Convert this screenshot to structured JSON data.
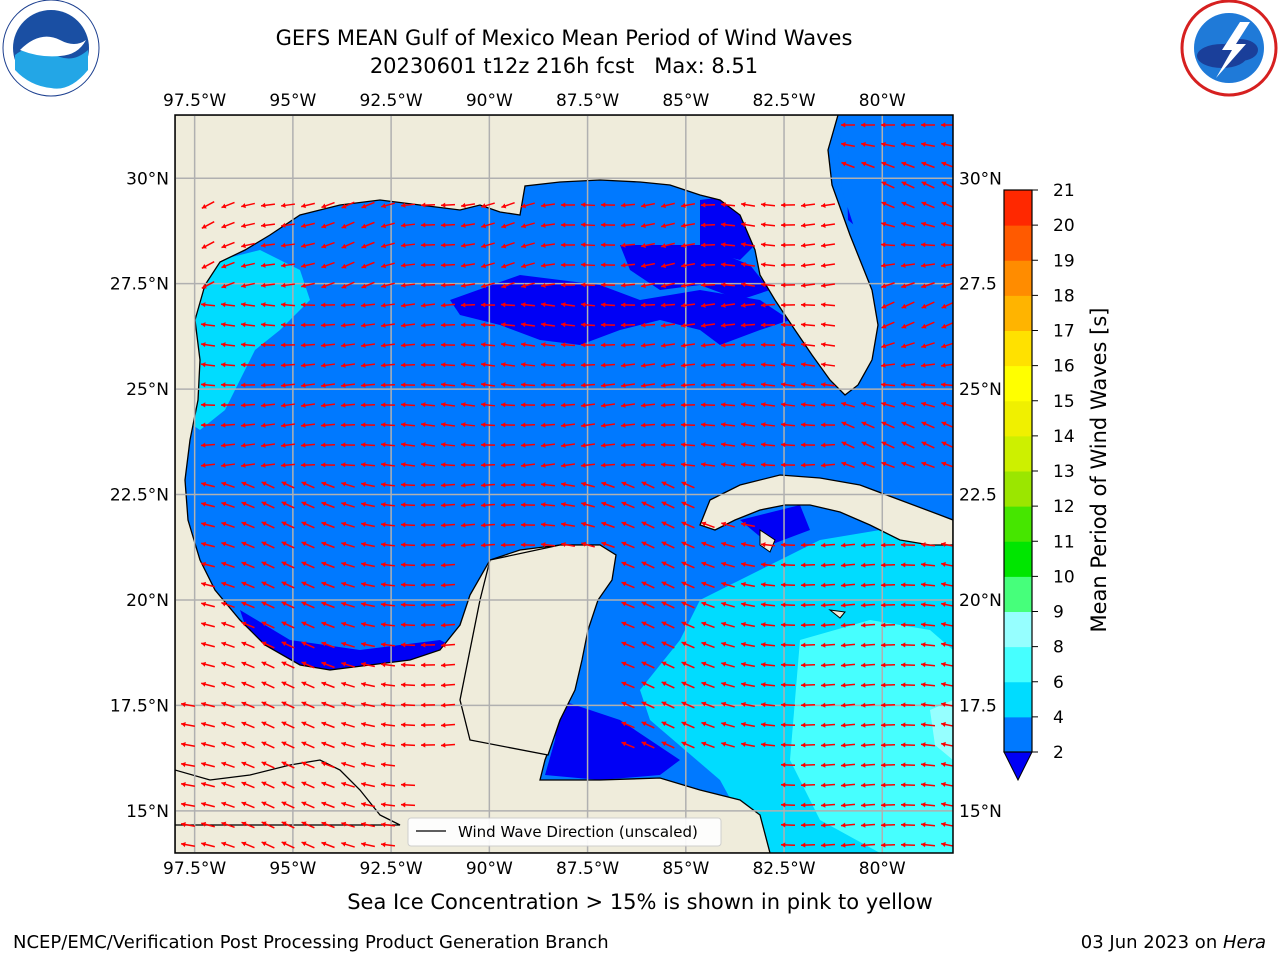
{
  "title_line1": "GEFS MEAN Gulf of Mexico Mean Period of Wind Waves",
  "title_line2": "20230601 t12z 216h fcst   Max: 8.51",
  "footer_note": "Sea Ice Concentration > 15% is shown in pink to yellow",
  "credit": "NCEP/EMC/Verification Post Processing Product Generation Branch",
  "date_text": "03 Jun 2023 on ",
  "machine": "Hera",
  "logos": {
    "left": "noaa-logo",
    "right": "nws-logo"
  },
  "map": {
    "lon_ticks": [
      "97.5°W",
      "95°W",
      "92.5°W",
      "90°W",
      "87.5°W",
      "85°W",
      "82.5°W",
      "80°W"
    ],
    "lon_values": [
      -97.5,
      -95,
      -92.5,
      -90,
      -87.5,
      -85,
      -82.5,
      -80
    ],
    "lat_ticks_left": [
      "30°N",
      "27.5°N",
      "25°N",
      "22.5°N",
      "20°N",
      "17.5°N",
      "15°N"
    ],
    "lat_ticks_right": [
      "30°N",
      "27.5",
      "25°N",
      "22.5",
      "20°N",
      "17.5",
      "15°N"
    ],
    "lat_values": [
      30,
      27.5,
      25,
      22.5,
      20,
      17.5,
      15
    ],
    "lon_range": [
      -98,
      -78.2
    ],
    "lat_range": [
      14,
      31.5
    ],
    "legend_label": "Wind Wave Direction (unscaled)",
    "land_color": "#efecdb",
    "arrow_color": "#ff0000"
  },
  "colorbar": {
    "label": "Mean Period of Wind Waves [s]",
    "ticks": [
      "2",
      "4",
      "6",
      "8",
      "9",
      "10",
      "11",
      "12",
      "13",
      "14",
      "15",
      "16",
      "17",
      "18",
      "19",
      "20",
      "21"
    ],
    "colors": [
      "#0079ff",
      "#00dcff",
      "#46ffff",
      "#96ffff",
      "#46ff7b",
      "#00e600",
      "#46e600",
      "#9be600",
      "#cdf000",
      "#f0f000",
      "#ffff00",
      "#ffe100",
      "#ffb400",
      "#ff8c00",
      "#ff5a00",
      "#ff2800"
    ],
    "under_color": "#0000f5"
  }
}
